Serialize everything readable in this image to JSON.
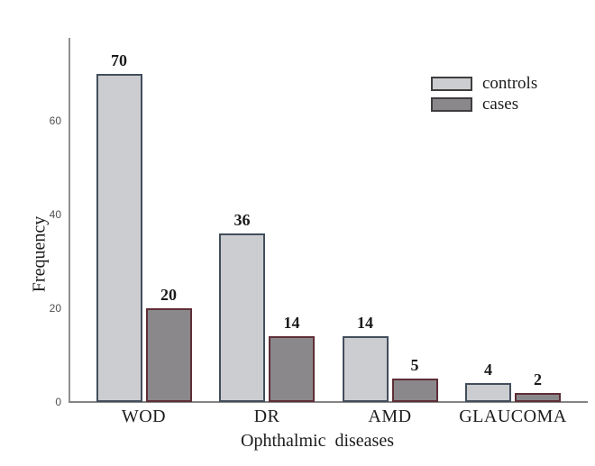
{
  "chart_data": {
    "type": "bar",
    "title": "",
    "xlabel": "Ophthalmic diseases",
    "ylabel": "Frequency",
    "categories": [
      "WOD",
      "DR",
      "AMD",
      "GLAUCOMA"
    ],
    "series": [
      {
        "name": "controls",
        "values": [
          70,
          36,
          14,
          4
        ],
        "fill": "#cbcdd0",
        "border": "#434e5c"
      },
      {
        "name": "cases",
        "values": [
          20,
          14,
          5,
          2
        ],
        "fill": "#8b888c",
        "border": "#5e2e37"
      }
    ],
    "bar_labels": true,
    "ylim": [
      0,
      77
    ],
    "yticks": [
      0,
      20,
      40,
      60
    ],
    "grid": false,
    "legend_position": "top-right",
    "colors": {
      "background": "#ffffff",
      "axis_line": "#8a8a8a",
      "tick_text": "#4f4f4f",
      "label_text": "#1d1d1d",
      "legend_swatch_border": "#3e3e3e"
    }
  }
}
